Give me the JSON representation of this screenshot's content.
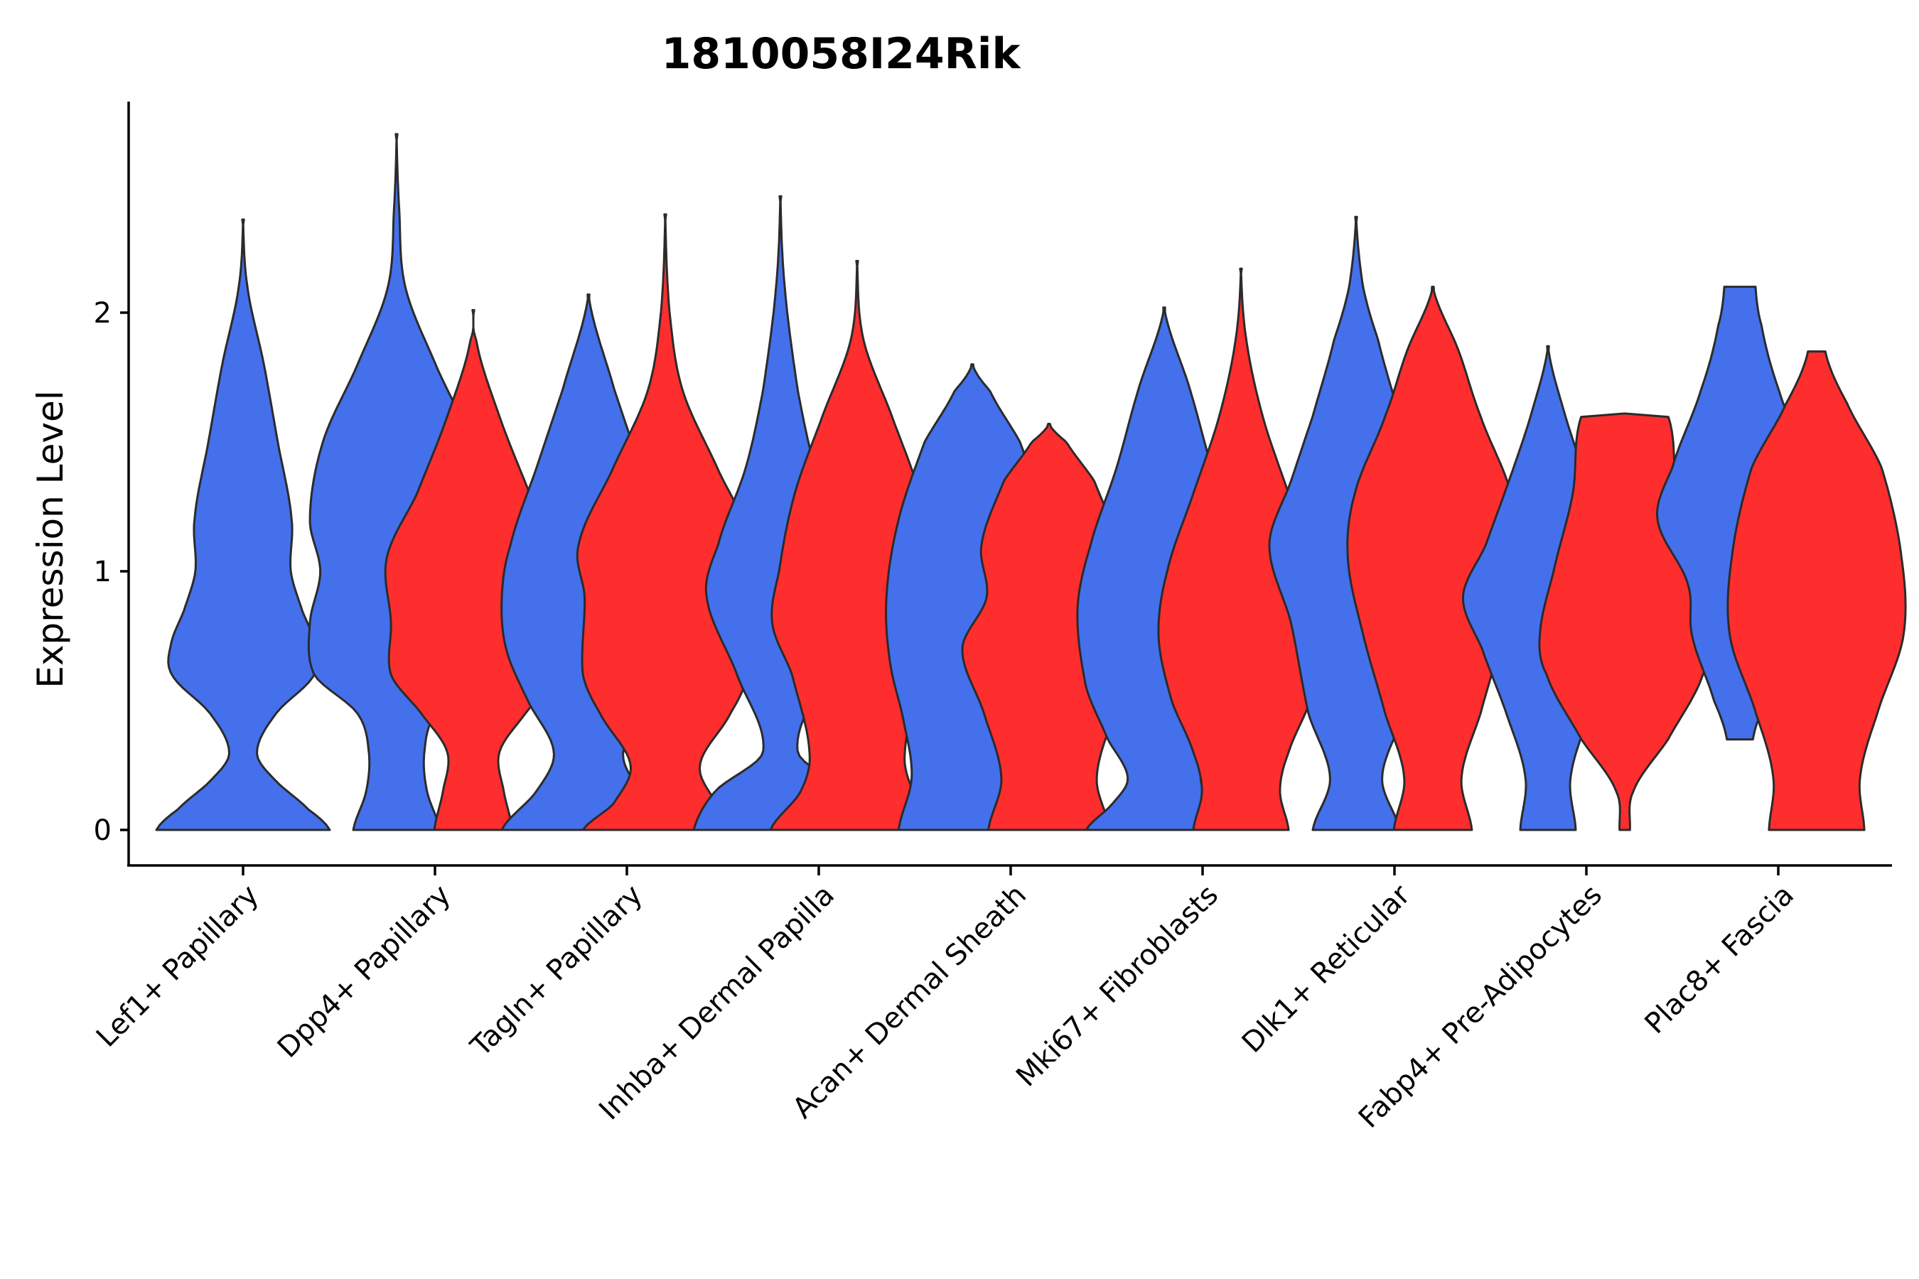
{
  "chart_data": {
    "type": "violin",
    "title": "1810058I24Rik",
    "xlabel": "",
    "ylabel": "Expression Level",
    "ylim": [
      -0.14,
      2.82
    ],
    "yticks": [
      0,
      1,
      2
    ],
    "grid": false,
    "legend": "none",
    "colors": {
      "group_a": "#4470EB",
      "group_b": "#FF2E2E"
    },
    "categories": [
      "Lef1+ Papillary",
      "Dpp4+ Papillary",
      "Tagln+ Papillary",
      "Inhba+ Dermal Papilla",
      "Acan+ Dermal Sheath",
      "Mki67+ Fibroblasts",
      "Dlk1+ Reticular",
      "Fabp4+ Pre-Adipocytes",
      "Plac8+ Fascia"
    ],
    "violins": [
      {
        "category": 0,
        "group": "group_a",
        "offset": 0.0,
        "max": 2.36,
        "profile": [
          [
            0,
            1.0
          ],
          [
            0.08,
            0.75
          ],
          [
            0.2,
            0.35
          ],
          [
            0.3,
            0.16
          ],
          [
            0.45,
            0.38
          ],
          [
            0.6,
            0.82
          ],
          [
            0.72,
            0.83
          ],
          [
            0.85,
            0.68
          ],
          [
            1.0,
            0.55
          ],
          [
            1.2,
            0.56
          ],
          [
            1.5,
            0.4
          ],
          [
            1.8,
            0.24
          ],
          [
            2.1,
            0.05
          ],
          [
            2.36,
            0.0
          ]
        ]
      },
      {
        "category": 1,
        "group": "group_a",
        "offset": -0.2,
        "max": 2.69,
        "profile": [
          [
            0,
            0.5
          ],
          [
            0.15,
            0.35
          ],
          [
            0.3,
            0.32
          ],
          [
            0.45,
            0.45
          ],
          [
            0.6,
            0.95
          ],
          [
            0.8,
            1.0
          ],
          [
            1.0,
            0.88
          ],
          [
            1.2,
            1.0
          ],
          [
            1.5,
            0.85
          ],
          [
            1.8,
            0.45
          ],
          [
            2.1,
            0.1
          ],
          [
            2.4,
            0.03
          ],
          [
            2.69,
            0.0
          ]
        ]
      },
      {
        "category": 1,
        "group": "group_b",
        "offset": 0.2,
        "max": 2.01,
        "profile": [
          [
            0,
            0.45
          ],
          [
            0.15,
            0.35
          ],
          [
            0.3,
            0.3
          ],
          [
            0.45,
            0.6
          ],
          [
            0.6,
            0.95
          ],
          [
            0.8,
            0.95
          ],
          [
            1.05,
            1.0
          ],
          [
            1.3,
            0.65
          ],
          [
            1.6,
            0.3
          ],
          [
            1.9,
            0.03
          ],
          [
            2.01,
            0.0
          ]
        ]
      },
      {
        "category": 2,
        "group": "group_a",
        "offset": -0.2,
        "max": 2.07,
        "profile": [
          [
            0,
            1.0
          ],
          [
            0.15,
            0.6
          ],
          [
            0.3,
            0.4
          ],
          [
            0.5,
            0.7
          ],
          [
            0.7,
            0.95
          ],
          [
            0.9,
            1.0
          ],
          [
            1.1,
            0.9
          ],
          [
            1.4,
            0.6
          ],
          [
            1.7,
            0.3
          ],
          [
            2.07,
            0.0
          ]
        ]
      },
      {
        "category": 2,
        "group": "group_b",
        "offset": 0.2,
        "max": 2.38,
        "profile": [
          [
            0,
            0.95
          ],
          [
            0.1,
            0.6
          ],
          [
            0.25,
            0.4
          ],
          [
            0.45,
            0.75
          ],
          [
            0.6,
            0.95
          ],
          [
            0.9,
            0.93
          ],
          [
            1.1,
            1.0
          ],
          [
            1.4,
            0.6
          ],
          [
            1.7,
            0.2
          ],
          [
            2.0,
            0.05
          ],
          [
            2.38,
            0.0
          ]
        ]
      },
      {
        "category": 3,
        "group": "group_a",
        "offset": -0.2,
        "max": 2.45,
        "profile": [
          [
            0,
            1.0
          ],
          [
            0.15,
            0.75
          ],
          [
            0.3,
            0.2
          ],
          [
            0.6,
            0.5
          ],
          [
            0.9,
            0.85
          ],
          [
            1.1,
            0.72
          ],
          [
            1.4,
            0.4
          ],
          [
            1.7,
            0.2
          ],
          [
            2.1,
            0.05
          ],
          [
            2.45,
            0.0
          ]
        ]
      },
      {
        "category": 3,
        "group": "group_b",
        "offset": 0.2,
        "max": 2.2,
        "profile": [
          [
            0,
            1.0
          ],
          [
            0.15,
            0.65
          ],
          [
            0.3,
            0.55
          ],
          [
            0.6,
            0.75
          ],
          [
            0.8,
            0.98
          ],
          [
            1.0,
            0.9
          ],
          [
            1.3,
            0.72
          ],
          [
            1.6,
            0.4
          ],
          [
            1.9,
            0.07
          ],
          [
            2.2,
            0.0
          ]
        ]
      },
      {
        "category": 4,
        "group": "group_a",
        "offset": -0.2,
        "max": 1.8,
        "profile": [
          [
            0,
            0.85
          ],
          [
            0.2,
            0.7
          ],
          [
            0.4,
            0.78
          ],
          [
            0.65,
            0.95
          ],
          [
            0.9,
            0.99
          ],
          [
            1.2,
            0.85
          ],
          [
            1.5,
            0.55
          ],
          [
            1.7,
            0.2
          ],
          [
            1.8,
            0.0
          ]
        ]
      },
      {
        "category": 4,
        "group": "group_b",
        "offset": 0.2,
        "max": 1.57,
        "profile": [
          [
            0,
            0.7
          ],
          [
            0.2,
            0.55
          ],
          [
            0.45,
            0.75
          ],
          [
            0.7,
            1.0
          ],
          [
            0.9,
            0.72
          ],
          [
            1.1,
            0.78
          ],
          [
            1.35,
            0.52
          ],
          [
            1.5,
            0.2
          ],
          [
            1.57,
            0.0
          ]
        ]
      },
      {
        "category": 5,
        "group": "group_a",
        "offset": -0.2,
        "max": 2.02,
        "profile": [
          [
            0,
            0.9
          ],
          [
            0.1,
            0.6
          ],
          [
            0.2,
            0.42
          ],
          [
            0.35,
            0.65
          ],
          [
            0.55,
            0.9
          ],
          [
            0.85,
            1.0
          ],
          [
            1.1,
            0.85
          ],
          [
            1.4,
            0.55
          ],
          [
            1.7,
            0.3
          ],
          [
            2.02,
            0.0
          ]
        ]
      },
      {
        "category": 5,
        "group": "group_b",
        "offset": 0.2,
        "max": 2.17,
        "profile": [
          [
            0,
            0.55
          ],
          [
            0.15,
            0.45
          ],
          [
            0.3,
            0.55
          ],
          [
            0.5,
            0.8
          ],
          [
            0.75,
            0.95
          ],
          [
            1.0,
            0.85
          ],
          [
            1.3,
            0.55
          ],
          [
            1.6,
            0.25
          ],
          [
            1.9,
            0.06
          ],
          [
            2.17,
            0.0
          ]
        ]
      },
      {
        "category": 6,
        "group": "group_a",
        "offset": -0.2,
        "max": 2.37,
        "profile": [
          [
            0,
            0.5
          ],
          [
            0.2,
            0.3
          ],
          [
            0.45,
            0.55
          ],
          [
            0.8,
            0.75
          ],
          [
            1.1,
            1.0
          ],
          [
            1.35,
            0.75
          ],
          [
            1.6,
            0.5
          ],
          [
            1.9,
            0.25
          ],
          [
            2.1,
            0.08
          ],
          [
            2.37,
            0.0
          ]
        ]
      },
      {
        "category": 6,
        "group": "group_b",
        "offset": 0.2,
        "max": 2.1,
        "profile": [
          [
            0,
            0.45
          ],
          [
            0.2,
            0.33
          ],
          [
            0.45,
            0.55
          ],
          [
            0.75,
            0.8
          ],
          [
            1.05,
            0.98
          ],
          [
            1.3,
            0.9
          ],
          [
            1.6,
            0.55
          ],
          [
            1.85,
            0.3
          ],
          [
            2.1,
            0.0
          ]
        ]
      },
      {
        "category": 7,
        "group": "group_a",
        "offset": -0.2,
        "max": 1.87,
        "profile": [
          [
            0,
            0.32
          ],
          [
            0.2,
            0.26
          ],
          [
            0.45,
            0.48
          ],
          [
            0.7,
            0.76
          ],
          [
            0.9,
            0.98
          ],
          [
            1.1,
            0.72
          ],
          [
            1.35,
            0.45
          ],
          [
            1.6,
            0.2
          ],
          [
            1.87,
            0.0
          ]
        ]
      },
      {
        "category": 7,
        "group": "group_b",
        "offset": 0.2,
        "max": 1.61,
        "profile": [
          [
            0,
            0.06
          ],
          [
            0.15,
            0.1
          ],
          [
            0.35,
            0.5
          ],
          [
            0.6,
            0.9
          ],
          [
            0.75,
            0.98
          ],
          [
            1.0,
            0.82
          ],
          [
            1.3,
            0.6
          ],
          [
            1.6,
            0.5
          ],
          [
            1.61,
            0.0
          ]
        ]
      },
      {
        "category": 8,
        "group": "group_a",
        "offset": -0.2,
        "max": 2.1,
        "profile": [
          [
            0.35,
            0.15
          ],
          [
            0.5,
            0.3
          ],
          [
            0.75,
            0.55
          ],
          [
            0.95,
            0.6
          ],
          [
            1.2,
            0.95
          ],
          [
            1.4,
            0.78
          ],
          [
            1.7,
            0.45
          ],
          [
            1.95,
            0.25
          ],
          [
            2.1,
            0.18
          ]
        ]
      },
      {
        "category": 8,
        "group": "group_b",
        "offset": 0.2,
        "max": 1.85,
        "profile": [
          [
            0,
            0.55
          ],
          [
            0.2,
            0.5
          ],
          [
            0.45,
            0.7
          ],
          [
            0.75,
            1.0
          ],
          [
            1.05,
            0.98
          ],
          [
            1.4,
            0.75
          ],
          [
            1.65,
            0.35
          ],
          [
            1.85,
            0.1
          ]
        ]
      }
    ]
  }
}
